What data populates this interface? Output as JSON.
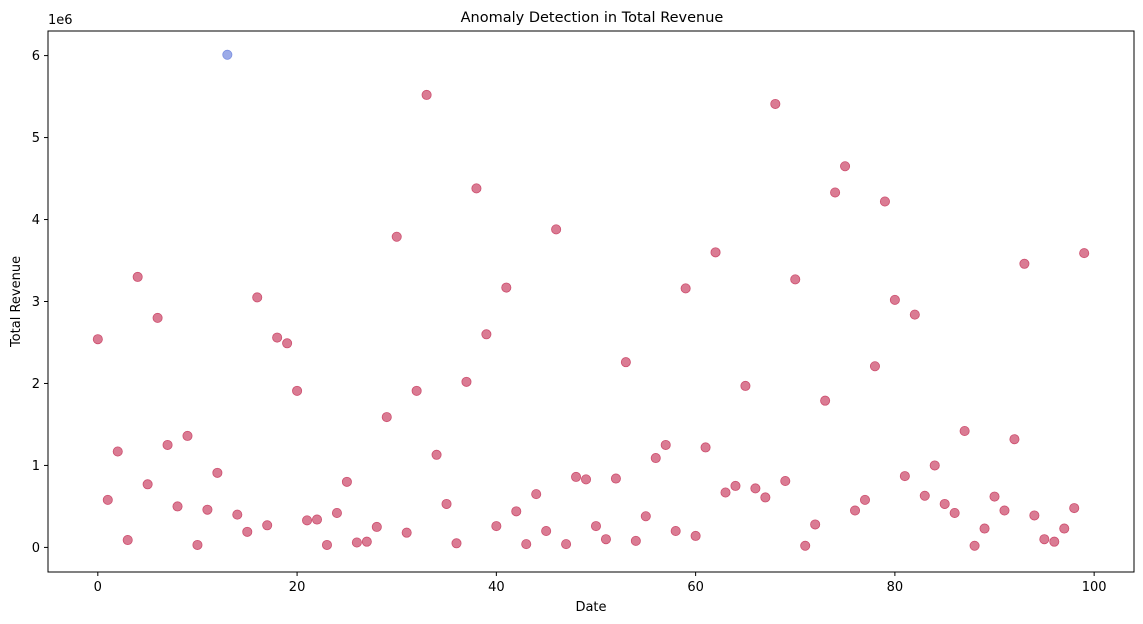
{
  "chart_data": {
    "type": "scatter",
    "title": "Anomaly Detection in Total Revenue",
    "xlabel": "Date",
    "ylabel": "Total Revenue",
    "offset_text": "1e6",
    "xlim": [
      -5,
      104
    ],
    "ylim": [
      -0.3,
      6.3
    ],
    "x_ticks": [
      0,
      20,
      40,
      60,
      80,
      100
    ],
    "y_ticks": [
      0,
      1,
      2,
      3,
      4,
      5,
      6
    ],
    "grid": false,
    "colors": {
      "normal": "#cd4f6f",
      "anomaly": "#7b8fe0"
    },
    "series": [
      {
        "x": [
          0,
          1,
          2,
          3,
          4,
          5,
          6,
          7,
          8,
          9,
          10,
          11,
          12,
          14,
          15,
          16,
          17,
          18,
          19,
          20,
          21,
          22,
          23,
          24,
          25,
          26,
          27,
          28,
          29,
          30,
          31,
          32,
          33,
          34,
          35,
          36,
          37,
          38,
          39,
          40,
          41,
          42,
          43,
          44,
          45,
          46,
          47,
          48,
          49,
          50,
          51,
          52,
          53,
          54,
          55,
          56,
          57,
          58,
          59,
          60,
          61,
          62,
          63,
          64,
          65,
          66,
          67,
          68,
          69,
          70,
          71,
          72,
          73,
          74,
          75,
          76,
          77,
          78,
          79,
          80,
          81,
          82,
          83,
          84,
          85,
          86,
          87,
          88,
          89,
          90,
          91,
          92,
          93,
          94,
          95,
          96,
          97,
          98,
          99
        ],
        "y": [
          2.54,
          0.58,
          1.17,
          0.09,
          3.3,
          0.77,
          2.8,
          1.25,
          0.5,
          1.36,
          0.03,
          0.46,
          0.91,
          0.4,
          0.19,
          3.05,
          0.27,
          2.56,
          2.49,
          1.91,
          0.33,
          0.34,
          0.03,
          0.42,
          0.8,
          0.06,
          0.07,
          0.25,
          1.59,
          3.79,
          0.18,
          1.91,
          5.52,
          1.13,
          0.53,
          0.05,
          2.02,
          4.38,
          2.6,
          0.26,
          3.17,
          0.44,
          0.04,
          0.65,
          0.2,
          3.88,
          0.04,
          0.86,
          0.83,
          0.26,
          0.1,
          0.84,
          2.26,
          0.08,
          0.38,
          1.09,
          1.25,
          0.2,
          3.16,
          0.14,
          1.22,
          3.6,
          0.67,
          0.75,
          1.97,
          0.72,
          0.61,
          5.41,
          0.81,
          3.27,
          0.02,
          0.28,
          1.79,
          4.33,
          4.65,
          0.45,
          0.58,
          2.21,
          4.22,
          3.02,
          0.87,
          2.84,
          0.63,
          1.0,
          0.53,
          0.42,
          1.42,
          0.02,
          0.23,
          0.62,
          0.45,
          1.32,
          3.46,
          0.39,
          0.1,
          0.07,
          0.23,
          0.48,
          3.59
        ]
      },
      {
        "x": [
          13
        ],
        "y": [
          6.01
        ]
      }
    ]
  }
}
